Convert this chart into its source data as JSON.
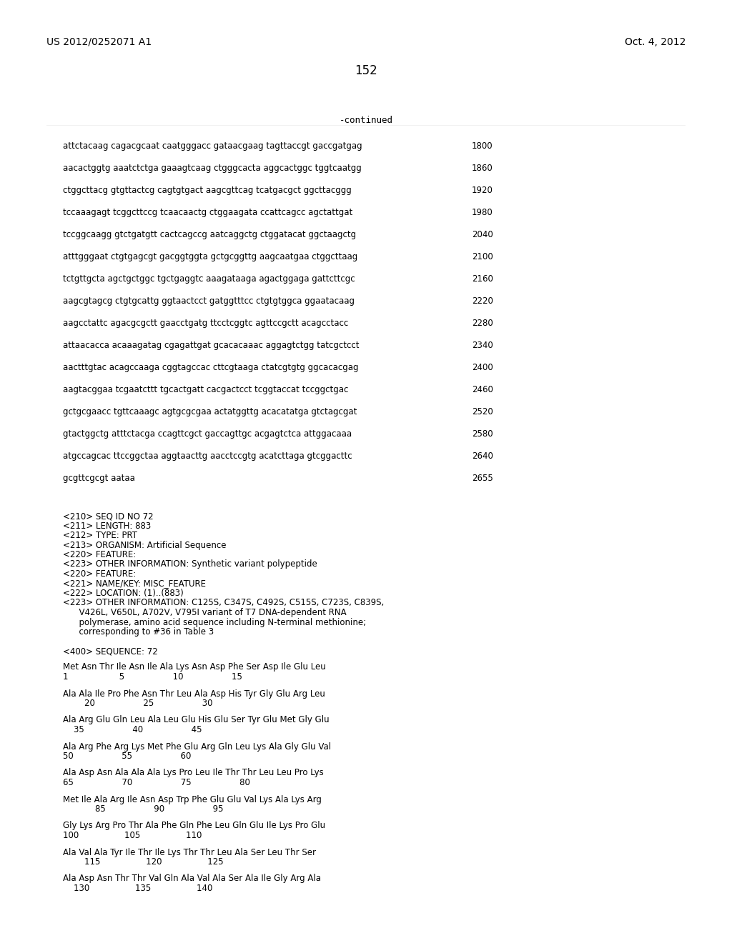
{
  "header_left": "US 2012/0252071 A1",
  "header_right": "Oct. 4, 2012",
  "page_number": "152",
  "continued_label": "-continued",
  "background_color": "#ffffff",
  "sequence_lines": [
    [
      "attctacaag cagacgcaat caatgggacc gataacgaag tagttaccgt gaccgatgag",
      "1800"
    ],
    [
      "aacactggtg aaatctctga gaaagtcaag ctgggcacta aggcactggc tggtcaatgg",
      "1860"
    ],
    [
      "ctggcttacg gtgttactcg cagtgtgact aagcgttcag tcatgacgct ggcttacggg",
      "1920"
    ],
    [
      "tccaaagagt tcggcttccg tcaacaactg ctggaagata ccattcagcc agctattgat",
      "1980"
    ],
    [
      "tccggcaagg gtctgatgtt cactcagccg aatcaggctg ctggatacat ggctaagctg",
      "2040"
    ],
    [
      "atttgggaat ctgtgagcgt gacggtggta gctgcggttg aagcaatgaa ctggcttaag",
      "2100"
    ],
    [
      "tctgttgcta agctgctggc tgctgaggtc aaagataaga agactggaga gattcttcgc",
      "2160"
    ],
    [
      "aagcgtagcg ctgtgcattg ggtaactcct gatggtttcc ctgtgtggca ggaatacaag",
      "2220"
    ],
    [
      "aagcctattc agacgcgctt gaacctgatg ttcctcggtc agttccgctt acagcctacc",
      "2280"
    ],
    [
      "attaacacca acaaagatag cgagattgat gcacacaaac aggagtctgg tatcgctcct",
      "2340"
    ],
    [
      "aactttgtac acagccaaga cggtagccac cttcgtaaga ctatcgtgtg ggcacacgag",
      "2400"
    ],
    [
      "aagtacggaa tcgaatcttt tgcactgatt cacgactcct tcggtaccat tccggctgac",
      "2460"
    ],
    [
      "gctgcgaacc tgttcaaagc agtgcgcgaa actatggttg acacatatga gtctagcgat",
      "2520"
    ],
    [
      "gtactggctg atttctacga ccagttcgct gaccagttgc acgagtctca attggacaaa",
      "2580"
    ],
    [
      "atgccagcac ttccggctaa aggtaacttg aacctccgtg acatcttaga gtcggacttc",
      "2640"
    ],
    [
      "gcgttcgcgt aataa",
      "2655"
    ]
  ],
  "metadata_lines": [
    "<210> SEQ ID NO 72",
    "<211> LENGTH: 883",
    "<212> TYPE: PRT",
    "<213> ORGANISM: Artificial Sequence",
    "<220> FEATURE:",
    "<223> OTHER INFORMATION: Synthetic variant polypeptide",
    "<220> FEATURE:",
    "<221> NAME/KEY: MISC_FEATURE",
    "<222> LOCATION: (1)..(883)",
    "<223> OTHER INFORMATION: C125S, C347S, C492S, C515S, C723S, C839S,",
    "      V426L, V650L, A702V, V795I variant of T7 DNA-dependent RNA",
    "      polymerase, amino acid sequence including N-terminal methionine;",
    "      corresponding to #36 in Table 3"
  ],
  "sequence_label": "<400> SEQUENCE: 72",
  "protein_lines": [
    {
      "seq": "Met Asn Thr Ile Asn Ile Ala Lys Asn Asp Phe Ser Asp Ile Glu Leu",
      "nums": "1                   5                  10                  15"
    },
    {
      "seq": "Ala Ala Ile Pro Phe Asn Thr Leu Ala Asp His Tyr Gly Glu Arg Leu",
      "nums": "        20                  25                  30"
    },
    {
      "seq": "Ala Arg Glu Gln Leu Ala Leu Glu His Glu Ser Tyr Glu Met Gly Glu",
      "nums": "    35                  40                  45"
    },
    {
      "seq": "Ala Arg Phe Arg Lys Met Phe Glu Arg Gln Leu Lys Ala Gly Glu Val",
      "nums": "50                  55                  60"
    },
    {
      "seq": "Ala Asp Asn Ala Ala Ala Lys Pro Leu Ile Thr Thr Leu Leu Pro Lys",
      "nums": "65                  70                  75                  80"
    },
    {
      "seq": "Met Ile Ala Arg Ile Asn Asp Trp Phe Glu Glu Val Lys Ala Lys Arg",
      "nums": "            85                  90                  95"
    },
    {
      "seq": "Gly Lys Arg Pro Thr Ala Phe Gln Phe Leu Gln Glu Ile Lys Pro Glu",
      "nums": "100                 105                 110"
    },
    {
      "seq": "Ala Val Ala Tyr Ile Thr Ile Lys Thr Thr Leu Ala Ser Leu Thr Ser",
      "nums": "        115                 120                 125"
    },
    {
      "seq": "Ala Asp Asn Thr Thr Val Gln Ala Val Ala Ser Ala Ile Gly Arg Ala",
      "nums": "    130                 135                 140"
    }
  ]
}
